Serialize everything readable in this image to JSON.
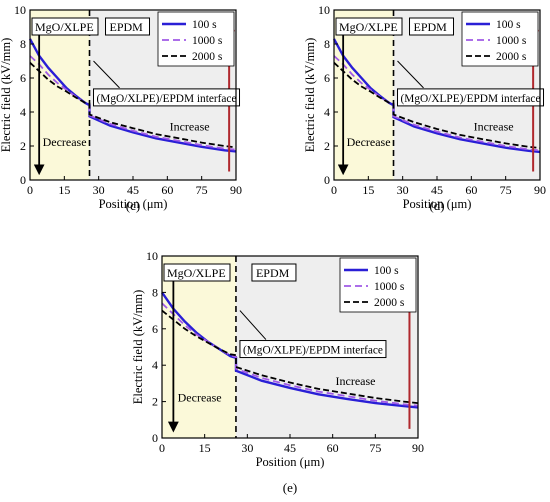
{
  "chart_data": [
    {
      "panel_label": "(c)",
      "type": "line",
      "xlabel": "Position (μm)",
      "ylabel": "Electric field (kV/mm)",
      "xlim": [
        0,
        90
      ],
      "ylim": [
        0,
        10
      ],
      "xticks": [
        "0",
        "15",
        "30",
        "45",
        "60",
        "75",
        "90"
      ],
      "yticks": [
        "0",
        "2",
        "4",
        "6",
        "8",
        "10"
      ],
      "interface_x": 26,
      "region_labels": {
        "left": "MgO/XLPE",
        "right": "EPDM"
      },
      "interface_label": "(MgO/XLPE)/EPDM interface",
      "annotations": {
        "decrease": "Decrease",
        "increase": "Increase"
      },
      "legend_position": "top-right",
      "series": [
        {
          "name": "100 s",
          "color": "#2a1fd6",
          "style": "solid",
          "x": [
            0,
            4,
            8,
            12,
            16,
            20,
            24,
            26,
            26,
            35,
            45,
            55,
            65,
            75,
            85,
            90
          ],
          "y": [
            8.3,
            7.3,
            6.6,
            6.0,
            5.4,
            4.95,
            4.55,
            4.4,
            3.75,
            3.2,
            2.8,
            2.45,
            2.2,
            1.95,
            1.75,
            1.68
          ]
        },
        {
          "name": "1000 s",
          "color": "#a05ae6",
          "style": "dash",
          "x": [
            0,
            4,
            8,
            12,
            16,
            20,
            24,
            26,
            26,
            35,
            45,
            55,
            65,
            75,
            85,
            90
          ],
          "y": [
            7.3,
            6.8,
            6.2,
            5.7,
            5.3,
            4.9,
            4.55,
            4.45,
            3.8,
            3.3,
            2.9,
            2.55,
            2.3,
            2.05,
            1.85,
            1.78
          ]
        },
        {
          "name": "2000 s",
          "color": "#000000",
          "style": "dash",
          "x": [
            0,
            4,
            8,
            12,
            16,
            20,
            24,
            26,
            26,
            35,
            45,
            55,
            65,
            75,
            85,
            90
          ],
          "y": [
            6.9,
            6.4,
            5.9,
            5.5,
            5.2,
            4.85,
            4.55,
            4.5,
            3.85,
            3.4,
            3.05,
            2.7,
            2.45,
            2.2,
            2.0,
            1.92
          ]
        }
      ]
    },
    {
      "panel_label": "(d)",
      "type": "line",
      "xlabel": "Position (μm)",
      "ylabel": "Electric field (kV/mm)",
      "xlim": [
        0,
        90
      ],
      "ylim": [
        0,
        10
      ],
      "xticks": [
        "0",
        "15",
        "30",
        "45",
        "60",
        "75",
        "90"
      ],
      "yticks": [
        "0",
        "2",
        "4",
        "6",
        "8",
        "10"
      ],
      "interface_x": 26,
      "region_labels": {
        "left": "MgO/XLPE",
        "right": "EPDM"
      },
      "interface_label": "(MgO/XLPE)/EPDM interface",
      "annotations": {
        "decrease": "Decrease",
        "increase": "Increase"
      },
      "legend_position": "top-right",
      "series": [
        {
          "name": "100 s",
          "color": "#2a1fd6",
          "style": "solid",
          "x": [
            0,
            4,
            8,
            12,
            16,
            20,
            24,
            26,
            26,
            35,
            45,
            55,
            65,
            75,
            85,
            90
          ],
          "y": [
            8.3,
            7.3,
            6.6,
            6.0,
            5.4,
            4.95,
            4.55,
            4.4,
            3.7,
            3.15,
            2.75,
            2.4,
            2.15,
            1.9,
            1.72,
            1.65
          ]
        },
        {
          "name": "1000 s",
          "color": "#a05ae6",
          "style": "dash",
          "x": [
            0,
            4,
            8,
            12,
            16,
            20,
            24,
            26,
            26,
            35,
            45,
            55,
            65,
            75,
            85,
            90
          ],
          "y": [
            7.3,
            6.8,
            6.2,
            5.7,
            5.3,
            4.9,
            4.55,
            4.45,
            3.75,
            3.25,
            2.85,
            2.5,
            2.25,
            2.0,
            1.8,
            1.74
          ]
        },
        {
          "name": "2000 s",
          "color": "#000000",
          "style": "dash",
          "x": [
            0,
            4,
            8,
            12,
            16,
            20,
            24,
            26,
            26,
            35,
            45,
            55,
            65,
            75,
            85,
            90
          ],
          "y": [
            6.9,
            6.4,
            5.9,
            5.5,
            5.2,
            4.85,
            4.55,
            4.5,
            3.85,
            3.4,
            3.0,
            2.65,
            2.4,
            2.15,
            1.95,
            1.88
          ]
        }
      ]
    },
    {
      "panel_label": "(e)",
      "type": "line",
      "xlabel": "Position (μm)",
      "ylabel": "Electric field (kV/mm)",
      "xlim": [
        0,
        90
      ],
      "ylim": [
        0,
        10
      ],
      "xticks": [
        "0",
        "15",
        "30",
        "45",
        "60",
        "75",
        "90"
      ],
      "yticks": [
        "0",
        "2",
        "4",
        "6",
        "8",
        "10"
      ],
      "interface_x": 26,
      "region_labels": {
        "left": "MgO/XLPE",
        "right": "EPDM"
      },
      "interface_label": "(MgO/XLPE)/EPDM interface",
      "annotations": {
        "decrease": "Decrease",
        "increase": "Increase"
      },
      "legend_position": "top-right",
      "series": [
        {
          "name": "100 s",
          "color": "#2a1fd6",
          "style": "solid",
          "x": [
            0,
            4,
            8,
            12,
            16,
            20,
            24,
            26,
            26,
            35,
            45,
            55,
            65,
            75,
            85,
            90
          ],
          "y": [
            8.0,
            7.1,
            6.4,
            5.8,
            5.3,
            4.9,
            4.5,
            4.4,
            3.7,
            3.15,
            2.75,
            2.4,
            2.15,
            1.92,
            1.75,
            1.68
          ]
        },
        {
          "name": "1000 s",
          "color": "#a05ae6",
          "style": "dash",
          "x": [
            0,
            4,
            8,
            12,
            16,
            20,
            24,
            26,
            26,
            35,
            45,
            55,
            65,
            75,
            85,
            90
          ],
          "y": [
            7.4,
            6.8,
            6.2,
            5.7,
            5.3,
            4.9,
            4.55,
            4.45,
            3.8,
            3.3,
            2.9,
            2.55,
            2.3,
            2.05,
            1.85,
            1.78
          ]
        },
        {
          "name": "2000 s",
          "color": "#000000",
          "style": "dash",
          "x": [
            0,
            4,
            8,
            12,
            16,
            20,
            24,
            26,
            26,
            35,
            45,
            55,
            65,
            75,
            85,
            90
          ],
          "y": [
            7.0,
            6.5,
            6.0,
            5.6,
            5.25,
            4.9,
            4.6,
            4.55,
            3.9,
            3.45,
            3.05,
            2.7,
            2.45,
            2.2,
            2.0,
            1.92
          ]
        }
      ]
    }
  ]
}
